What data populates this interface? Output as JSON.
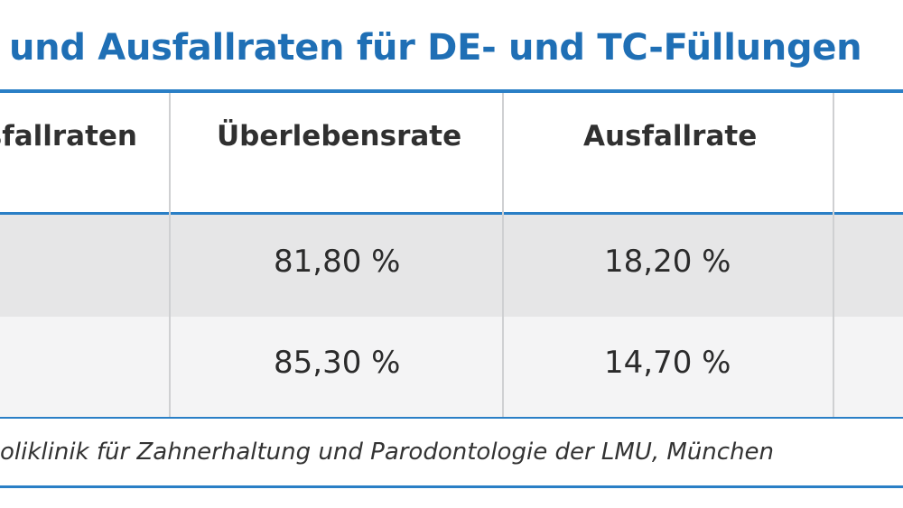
{
  "title": "und Ausfallraten für DE- und TC-Füllungen",
  "table": {
    "headers": [
      "sfallraten",
      "Überlebensrate",
      "Ausfallrate"
    ],
    "rows": [
      {
        "col1": "",
        "survival": "81,80 %",
        "failure": "18,20 %"
      },
      {
        "col1": "",
        "survival": "85,30 %",
        "failure": "14,70 %"
      }
    ]
  },
  "footnote": "oliklinik für Zahnerhaltung und Parodontologie der LMU, München",
  "colors": {
    "accent": "#2a7fc6",
    "title": "#1f6fb5",
    "row1": "#e6e6e7",
    "row2": "#f4f4f5"
  }
}
